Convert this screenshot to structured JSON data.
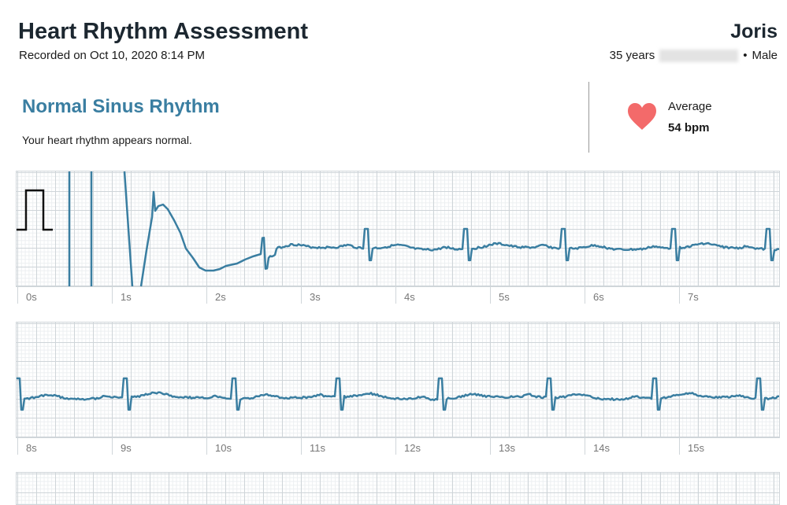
{
  "header": {
    "title": "Heart Rhythm Assessment",
    "recorded": "Recorded on Oct 10, 2020 8:14 PM",
    "name": "Joris",
    "age": "35 years",
    "sex": "Male",
    "separator": "•"
  },
  "result": {
    "rhythm": "Normal Sinus Rhythm",
    "description": "Your heart rhythm appears normal.",
    "average_label": "Average",
    "average_bpm": "54 bpm"
  },
  "colors": {
    "trace": "#3a7ea1",
    "heart": "#f36a6a",
    "title_accent": "#3a7ea1"
  },
  "strips": [
    {
      "labels": [
        "0s",
        "1s",
        "2s",
        "3s",
        "4s",
        "5s",
        "6s",
        "7s"
      ],
      "start": 0,
      "beats": [
        2.58,
        3.69,
        4.73,
        5.77,
        6.93,
        7.93
      ]
    },
    {
      "labels": [
        "8s",
        "9s",
        "10s",
        "11s",
        "12s",
        "13s",
        "14s",
        "15s"
      ],
      "start": 8,
      "beats": [
        8.0,
        9.13,
        10.29,
        11.39,
        12.47,
        13.61,
        14.74,
        15.83
      ]
    }
  ]
}
